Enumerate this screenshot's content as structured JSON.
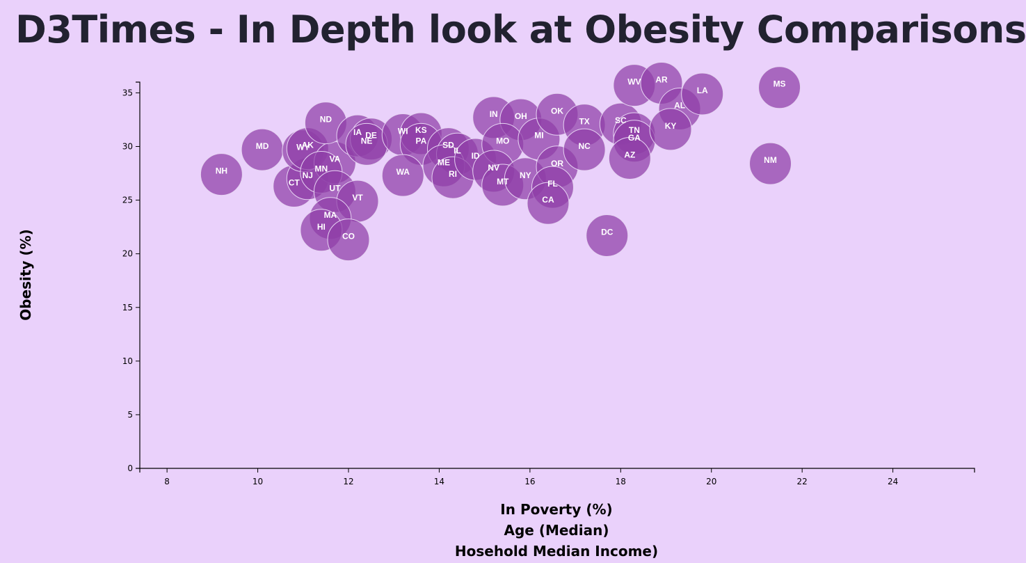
{
  "title": "D3Times - In Depth look at Obesity Comparisons",
  "chart_data": {
    "type": "scatter",
    "title": "",
    "xlabels": [
      "In Poverty (%)",
      "Age (Median)",
      "Hosehold Median Income)"
    ],
    "ylabel": "Obesity (%)",
    "xlim": [
      7.4,
      25.8
    ],
    "ylim": [
      0,
      36
    ],
    "xticks": [
      8,
      10,
      12,
      14,
      16,
      18,
      20,
      22,
      24
    ],
    "yticks": [
      0,
      5,
      10,
      15,
      20,
      25,
      30,
      35
    ],
    "grid": false,
    "marker_color": "#8f3fa8",
    "points": [
      {
        "state": "NH",
        "x": 9.2,
        "y": 27.4
      },
      {
        "state": "MD",
        "x": 10.1,
        "y": 29.7
      },
      {
        "state": "CT",
        "x": 10.8,
        "y": 26.3
      },
      {
        "state": "NJ",
        "x": 11.1,
        "y": 27.0
      },
      {
        "state": "WY",
        "x": 11.0,
        "y": 29.6
      },
      {
        "state": "AK",
        "x": 11.1,
        "y": 29.8
      },
      {
        "state": "VA",
        "x": 11.7,
        "y": 28.5
      },
      {
        "state": "MN",
        "x": 11.4,
        "y": 27.6
      },
      {
        "state": "ND",
        "x": 11.5,
        "y": 32.2
      },
      {
        "state": "UT",
        "x": 11.7,
        "y": 25.8
      },
      {
        "state": "VT",
        "x": 12.2,
        "y": 24.9
      },
      {
        "state": "MA",
        "x": 11.6,
        "y": 23.3
      },
      {
        "state": "HI",
        "x": 11.4,
        "y": 22.2
      },
      {
        "state": "CO",
        "x": 12.0,
        "y": 21.3
      },
      {
        "state": "IA",
        "x": 12.2,
        "y": 31.0
      },
      {
        "state": "DE",
        "x": 12.5,
        "y": 30.7
      },
      {
        "state": "NE",
        "x": 12.4,
        "y": 30.2
      },
      {
        "state": "WI",
        "x": 13.2,
        "y": 31.1
      },
      {
        "state": "KS",
        "x": 13.6,
        "y": 31.2
      },
      {
        "state": "PA",
        "x": 13.6,
        "y": 30.2
      },
      {
        "state": "WA",
        "x": 13.2,
        "y": 27.3
      },
      {
        "state": "SD",
        "x": 14.2,
        "y": 29.8
      },
      {
        "state": "IL",
        "x": 14.4,
        "y": 29.3
      },
      {
        "state": "ME",
        "x": 14.1,
        "y": 28.2
      },
      {
        "state": "RI",
        "x": 14.3,
        "y": 27.1
      },
      {
        "state": "ID",
        "x": 14.8,
        "y": 28.8
      },
      {
        "state": "IN",
        "x": 15.2,
        "y": 32.7
      },
      {
        "state": "OH",
        "x": 15.8,
        "y": 32.5
      },
      {
        "state": "MO",
        "x": 15.4,
        "y": 30.2
      },
      {
        "state": "NV",
        "x": 15.2,
        "y": 27.7
      },
      {
        "state": "MT",
        "x": 15.4,
        "y": 26.4
      },
      {
        "state": "NY",
        "x": 15.9,
        "y": 27.0
      },
      {
        "state": "MI",
        "x": 16.2,
        "y": 30.7
      },
      {
        "state": "OK",
        "x": 16.6,
        "y": 33.0
      },
      {
        "state": "OR",
        "x": 16.6,
        "y": 28.1
      },
      {
        "state": "FL",
        "x": 16.5,
        "y": 26.2
      },
      {
        "state": "CA",
        "x": 16.4,
        "y": 24.7
      },
      {
        "state": "TX",
        "x": 17.2,
        "y": 32.0
      },
      {
        "state": "NC",
        "x": 17.2,
        "y": 29.7
      },
      {
        "state": "DC",
        "x": 17.7,
        "y": 21.7
      },
      {
        "state": "SC",
        "x": 18.0,
        "y": 32.1
      },
      {
        "state": "TN",
        "x": 18.3,
        "y": 31.2
      },
      {
        "state": "GA",
        "x": 18.3,
        "y": 30.5
      },
      {
        "state": "AZ",
        "x": 18.2,
        "y": 28.9
      },
      {
        "state": "WV",
        "x": 18.3,
        "y": 35.7
      },
      {
        "state": "AR",
        "x": 18.9,
        "y": 35.9
      },
      {
        "state": "AL",
        "x": 19.3,
        "y": 33.5
      },
      {
        "state": "KY",
        "x": 19.1,
        "y": 31.6
      },
      {
        "state": "LA",
        "x": 19.8,
        "y": 34.9
      },
      {
        "state": "NM",
        "x": 21.3,
        "y": 28.4
      },
      {
        "state": "MS",
        "x": 21.5,
        "y": 35.5
      }
    ]
  }
}
